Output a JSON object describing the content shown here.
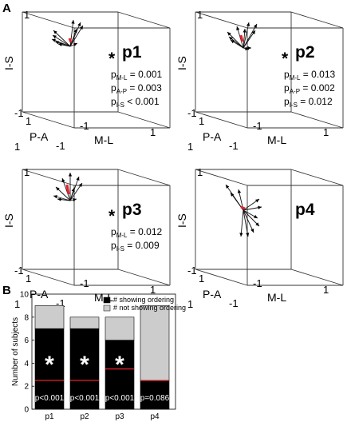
{
  "panel_a": {
    "label": "A",
    "axes": {
      "vertical": "I-S",
      "depth": "P-A",
      "horizontal": "M-L"
    },
    "ticks": {
      "pos": "1",
      "neg": "-1"
    },
    "subplots": [
      {
        "title": "p1",
        "significant": true,
        "star": "*",
        "pvalues": [
          {
            "sym": "p",
            "sub": "M-L",
            "rel": " = ",
            "val": "0.001"
          },
          {
            "sym": "p",
            "sub": "A-P",
            "rel": " = ",
            "val": "0.003"
          },
          {
            "sym": "p",
            "sub": "I-S",
            "rel": " < ",
            "val": "0.001"
          }
        ]
      },
      {
        "title": "p2",
        "significant": true,
        "star": "*",
        "pvalues": [
          {
            "sym": "p",
            "sub": "M-L",
            "rel": " = ",
            "val": "0.013"
          },
          {
            "sym": "p",
            "sub": "A-P",
            "rel": " = ",
            "val": "0.002"
          },
          {
            "sym": "p",
            "sub": "I-S",
            "rel": " = ",
            "val": "0.012"
          }
        ]
      },
      {
        "title": "p3",
        "significant": true,
        "star": "*",
        "pvalues": [
          {
            "sym": "p",
            "sub": "M-L",
            "rel": " = ",
            "val": "0.012"
          },
          {
            "sym": "p",
            "sub": "I-S",
            "rel": " = ",
            "val": "0.009"
          }
        ]
      },
      {
        "title": "p4",
        "significant": false,
        "star": "",
        "pvalues": []
      }
    ]
  },
  "chart_data": {
    "type": "bar",
    "panel_label": "B",
    "categories": [
      "p1",
      "p2",
      "p3",
      "p4"
    ],
    "ylabel": "Number of subjects",
    "ylim": [
      0,
      10
    ],
    "yticks": [
      "0",
      "2",
      "4",
      "6",
      "8",
      "10"
    ],
    "total": 9,
    "series": [
      {
        "name": "# showing ordering",
        "values": [
          7,
          7,
          6,
          2.5
        ],
        "color": "#000000"
      },
      {
        "name": "# not showing ordering",
        "values": [
          2,
          1,
          2,
          6.5
        ],
        "color": "#cccccc"
      }
    ],
    "chance_level": [
      2.5,
      2.5,
      3.5,
      2.5
    ],
    "chance_color": "#e8202a",
    "pvalues": [
      "p<0.001",
      "p<0.001",
      "p<0.001",
      "p=0.086"
    ],
    "stars": [
      "*",
      "*",
      "*",
      ""
    ],
    "legend_position": "top-right"
  }
}
